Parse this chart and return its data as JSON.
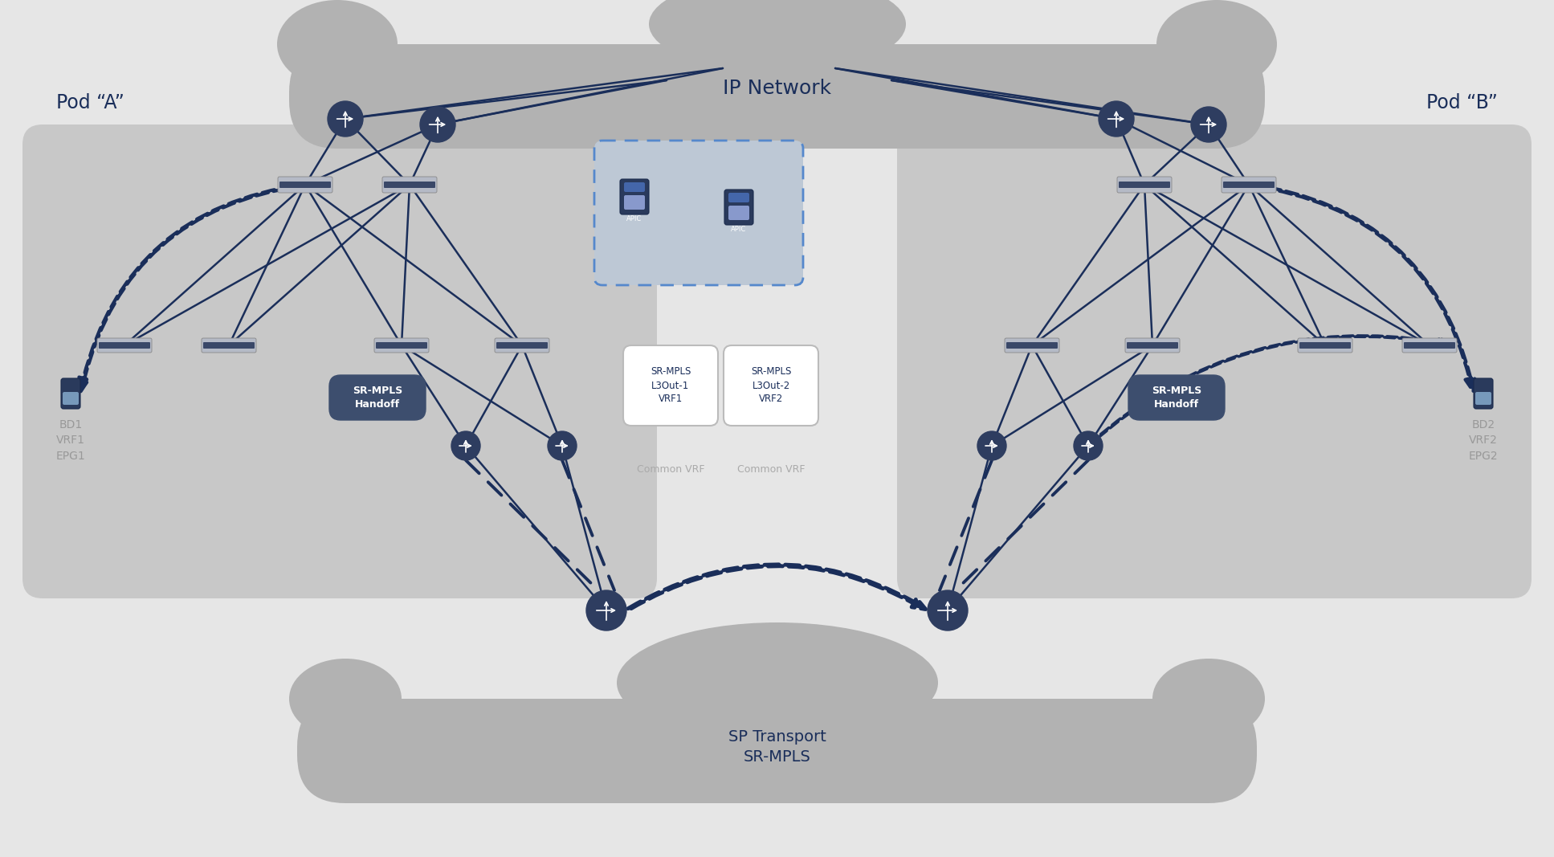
{
  "bg_color": "#e6e6e6",
  "pod_bg": "#c8c8c8",
  "cloud_color": "#b0b0b0",
  "line_color": "#1a2e5a",
  "text_dark": "#1a2e5a",
  "text_gray": "#999999",
  "handoff_color": "#3d4e6e",
  "apic_bg": "#c5cdd8",
  "apic_border": "#5588cc",
  "white": "#ffffff",
  "l3out_border": "#bbbbbb",
  "title_ip": "IP Network",
  "title_sp": "SP Transport\nSR-MPLS",
  "pod_a": "Pod “A”",
  "pod_b": "Pod “B”",
  "handoff_text": "SR-MPLS\nHandoff",
  "l3out1_text": "SR-MPLS\nL3Out-1\nVRF1",
  "l3out2_text": "SR-MPLS\nL3Out-2\nVRF2",
  "common_vrf": "Common VRF",
  "bd1_text": "BD1\nVRF1\nEPG1",
  "bd2_text": "BD2\nVRF2\nEPG2"
}
